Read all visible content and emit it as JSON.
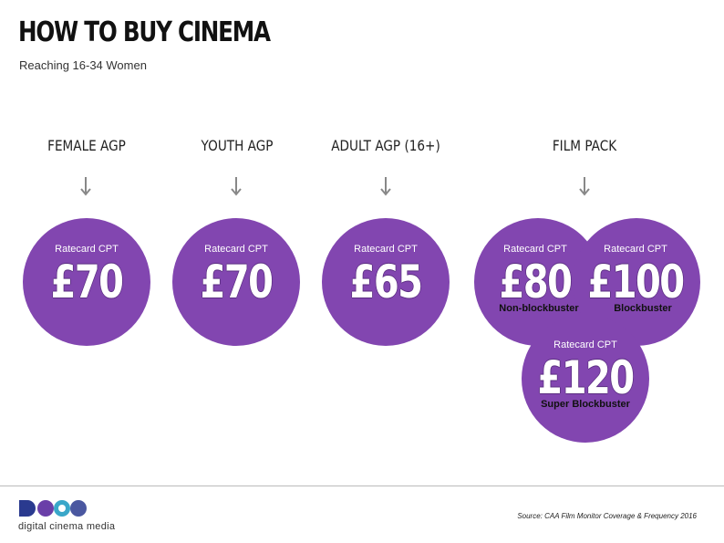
{
  "header": {
    "title": "HOW TO BUY CINEMA",
    "subtitle": "Reaching 16-34 Women"
  },
  "columns": [
    {
      "heading": "FEMALE AGP",
      "label": "Ratecard CPT",
      "price": "£70"
    },
    {
      "heading": "YOUTH AGP",
      "label": "Ratecard CPT",
      "price": "£70"
    },
    {
      "heading": "ADULT AGP (16+)",
      "label": "Ratecard CPT",
      "price": "£65"
    },
    {
      "heading": "FILM PACK"
    }
  ],
  "film_pack": [
    {
      "label": "Ratecard CPT",
      "price": "£80",
      "sub": "Non-blockbuster"
    },
    {
      "label": "Ratecard CPT",
      "price": "£100",
      "sub": "Blockbuster"
    },
    {
      "label": "Ratecard CPT",
      "price": "£120",
      "sub": "Super Blockbuster"
    }
  ],
  "footer": {
    "logo_text": "digital cinema media",
    "source": "Source: CAA Film Monitor Coverage & Frequency 2016"
  },
  "colors": {
    "accent": "#8246b0",
    "logo_blue": "#2a3a8f",
    "logo_purple": "#6a3fa8",
    "logo_teal": "#3aa7c9"
  }
}
